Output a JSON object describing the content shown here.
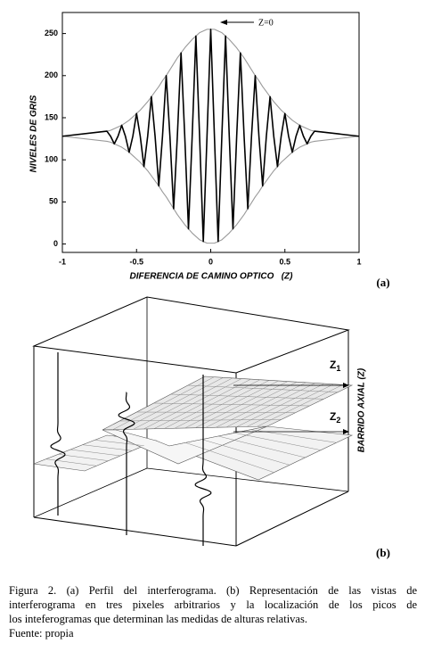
{
  "chart_data": {
    "type": "line",
    "ylabel": "NIVELES DE GRIS",
    "xlabel": "DIFERENCIA DE CAMINO OPTICO   (Z)",
    "annotation": "Z=0",
    "x": [
      -1,
      -0.7,
      -0.675,
      -0.65,
      -0.625,
      -0.6,
      -0.575,
      -0.55,
      -0.525,
      -0.5,
      -0.475,
      -0.45,
      -0.425,
      -0.4,
      -0.375,
      -0.35,
      -0.325,
      -0.3,
      -0.275,
      -0.25,
      -0.225,
      -0.2,
      -0.175,
      -0.15,
      -0.125,
      -0.1,
      -0.075,
      -0.05,
      -0.025,
      0,
      0.025,
      0.05,
      0.075,
      0.1,
      0.125,
      0.15,
      0.175,
      0.2,
      0.225,
      0.25,
      0.275,
      0.3,
      0.325,
      0.35,
      0.375,
      0.4,
      0.425,
      0.45,
      0.475,
      0.5,
      0.525,
      0.55,
      0.575,
      0.6,
      0.625,
      0.65,
      0.675,
      0.7,
      1
    ],
    "series": [
      {
        "color": "#9a9a9a",
        "values": [
          128,
          134,
          135,
          137,
          139,
          141,
          144,
          147,
          151,
          155,
          159,
          164,
          169,
          175,
          181,
          187,
          194,
          200,
          207,
          214,
          221,
          227,
          233,
          238,
          243,
          247,
          251,
          253,
          255,
          255,
          255,
          253,
          251,
          247,
          243,
          238,
          233,
          227,
          221,
          214,
          207,
          200,
          194,
          187,
          181,
          175,
          169,
          164,
          159,
          155,
          151,
          147,
          144,
          141,
          139,
          137,
          135,
          134,
          128
        ]
      },
      {
        "color": "#9a9a9a",
        "values": [
          128,
          122,
          121,
          119,
          117,
          115,
          112,
          109,
          105,
          101,
          97,
          92,
          87,
          81,
          75,
          69,
          62,
          56,
          49,
          42,
          35,
          29,
          23,
          18,
          13,
          9,
          5,
          3,
          1,
          1,
          1,
          3,
          5,
          9,
          13,
          18,
          23,
          29,
          35,
          42,
          49,
          56,
          62,
          69,
          75,
          81,
          87,
          92,
          97,
          101,
          105,
          109,
          112,
          115,
          117,
          119,
          121,
          122,
          128
        ]
      },
      {
        "color": "#000000",
        "values": [
          128,
          134,
          128,
          119,
          128,
          141,
          128,
          109,
          128,
          155,
          128,
          92,
          128,
          175,
          128,
          69,
          128,
          200,
          128,
          42,
          128,
          227,
          128,
          18,
          128,
          247,
          128,
          3,
          128,
          255,
          128,
          3,
          128,
          247,
          128,
          18,
          128,
          227,
          128,
          42,
          128,
          200,
          128,
          69,
          128,
          175,
          128,
          92,
          128,
          155,
          128,
          109,
          128,
          141,
          128,
          119,
          128,
          134,
          128
        ]
      }
    ],
    "xlim": [
      -1,
      1
    ],
    "xticks": [
      -1,
      -0.5,
      0,
      0.5,
      1
    ],
    "ylim": [
      -10,
      275
    ],
    "yticks": [
      0,
      50,
      100,
      150,
      200,
      250
    ],
    "grid": false
  },
  "panel_a": "(a)",
  "diagram": {
    "panel": "(b)",
    "z1": {
      "letter": "Z",
      "sub": "1"
    },
    "z2": {
      "letter": "Z",
      "sub": "2"
    },
    "axis_label": "BARRIDO AXIAL (Z)"
  },
  "caption": {
    "lines": [
      "Figura 2. (a) Perfil del interferograma. (b) Representación de las vistas de",
      "interferograma en tres pixeles arbitrarios y la localización de los picos de",
      "los inteferogramas que determinan  las medidas de alturas relativas."
    ],
    "source": "Fuente: propia"
  }
}
